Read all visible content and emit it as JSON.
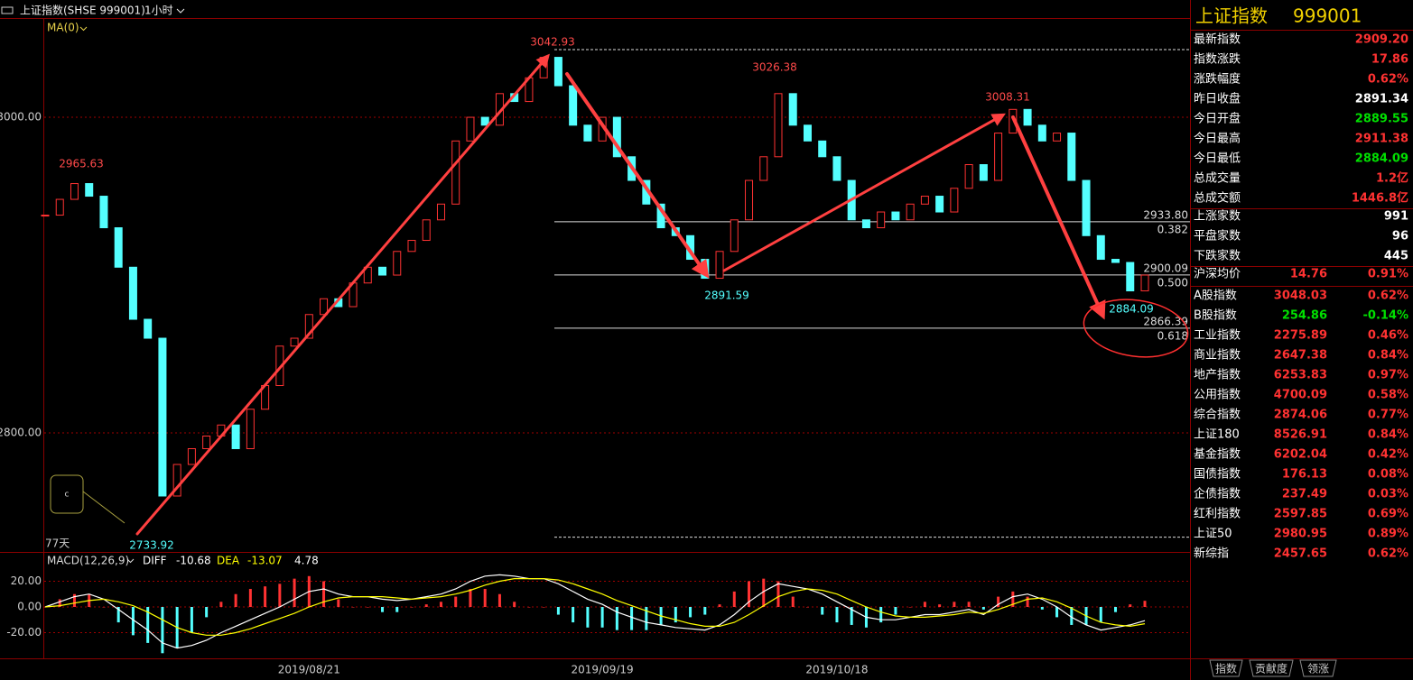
{
  "header": {
    "symbol": "上证指数(SHSE 999001)",
    "period": "1小时",
    "indicator": "MA(0)",
    "span": "77天",
    "note": "c"
  },
  "chart_data": {
    "type": "candlestick",
    "categories": [
      null,
      null,
      null,
      null,
      null,
      null,
      null,
      null,
      null,
      null,
      null,
      null,
      null,
      null,
      null,
      null,
      null,
      null,
      "2019/08/21",
      null,
      null,
      null,
      null,
      null,
      null,
      null,
      null,
      null,
      null,
      null,
      null,
      null,
      null,
      null,
      null,
      null,
      null,
      null,
      "2019/09/19",
      null,
      null,
      null,
      null,
      null,
      null,
      null,
      null,
      null,
      null,
      null,
      null,
      null,
      null,
      null,
      "2019/10/18",
      null,
      null,
      null,
      null,
      null,
      null,
      null,
      null,
      null,
      null,
      null,
      null,
      null,
      null,
      null,
      null,
      null,
      null,
      null,
      null,
      null
    ],
    "values": [
      2938,
      2948,
      2958,
      2950,
      2930,
      2905,
      2872,
      2860,
      2760,
      2780,
      2790,
      2798,
      2805,
      2790,
      2815,
      2830,
      2855,
      2860,
      2875,
      2885,
      2880,
      2895,
      2905,
      2900,
      2915,
      2922,
      2935,
      2945,
      2985,
      3000,
      2995,
      3015,
      3010,
      3025,
      3038,
      3020,
      2995,
      2985,
      3000,
      2975,
      2960,
      2945,
      2930,
      2925,
      2910,
      2898,
      2915,
      2935,
      2960,
      2975,
      3015,
      2995,
      2985,
      2975,
      2960,
      2935,
      2930,
      2940,
      2935,
      2945,
      2950,
      2940,
      2955,
      2970,
      2960,
      2990,
      3005,
      2995,
      2985,
      2990,
      2960,
      2925,
      2910,
      2908,
      2890,
      2900
    ],
    "up_color": "#ff3232",
    "down_color": "#54ffff",
    "ylim": [
      2725.7,
      3062.9
    ],
    "yticks": [
      {
        "value": 2800,
        "label": "2800.00"
      },
      {
        "value": 3000,
        "label": "3000.00"
      }
    ],
    "grid": true,
    "price_labels": [
      3042.93,
      2965.63,
      3026.38,
      3008.31,
      2891.59,
      2884.09,
      2733.92
    ],
    "fib": [
      {
        "price": {
          "value": 2933.8,
          "label": "2933.80"
        },
        "ratio": 0.382
      },
      {
        "price": 2900.09,
        "ratio": {
          "value": 0.5,
          "label": "0.500"
        }
      },
      {
        "price": 2866.39,
        "ratio": 0.618
      }
    ],
    "macd": {
      "title": "MACD(12,26,9)",
      "ylim": [
        -40,
        42.8
      ],
      "yticks": [
        {
          "value": -20,
          "label": "-20.00"
        },
        {
          "value": 0,
          "label": "0.00"
        },
        {
          "value": 20,
          "label": "20.00"
        }
      ],
      "hist": [
        0,
        6,
        10,
        10,
        0,
        -12,
        -22,
        -28,
        -36,
        -32,
        -20,
        -8,
        4,
        10,
        14,
        16,
        18,
        22,
        24,
        20,
        6,
        0,
        0,
        -4,
        -4,
        0,
        2,
        4,
        8,
        14,
        14,
        10,
        4,
        0,
        0,
        -6,
        -12,
        -16,
        -16,
        -18,
        -18,
        -18,
        -14,
        -12,
        -8,
        -6,
        2,
        12,
        20,
        22,
        20,
        8,
        0,
        -6,
        -12,
        -14,
        -16,
        -12,
        -6,
        0,
        4,
        2,
        4,
        4,
        -2,
        8,
        12,
        8,
        -2,
        -8,
        -14,
        -14,
        -12,
        -4,
        2,
        4.78
      ],
      "series": [
        {
          "name": "DIFF",
          "color": "#ffffff",
          "values": [
            0,
            4,
            8,
            10,
            6,
            -2,
            -10,
            -18,
            -28,
            -32,
            -30,
            -26,
            -20,
            -15,
            -10,
            -5,
            0,
            6,
            12,
            14,
            10,
            8,
            8,
            6,
            5,
            6,
            8,
            10,
            14,
            20,
            24,
            25,
            24,
            22,
            22,
            18,
            12,
            6,
            2,
            -4,
            -8,
            -12,
            -14,
            -16,
            -17,
            -18,
            -14,
            -6,
            4,
            12,
            18,
            16,
            14,
            10,
            4,
            -2,
            -8,
            -10,
            -10,
            -8,
            -6,
            -6,
            -4,
            -2,
            -6,
            2,
            8,
            10,
            6,
            0,
            -8,
            -14,
            -18,
            -16,
            -14,
            -10.68
          ]
        },
        {
          "name": "DEA",
          "color": "#ffff00",
          "values": [
            0,
            1,
            3,
            5,
            6,
            4,
            1,
            -4,
            -10,
            -16,
            -20,
            -22,
            -22,
            -20,
            -17,
            -13,
            -9,
            -5,
            0,
            4,
            7,
            8,
            8,
            8,
            7,
            6,
            7,
            8,
            10,
            13,
            17,
            20,
            22,
            22,
            22,
            21,
            18,
            14,
            10,
            5,
            1,
            -3,
            -7,
            -10,
            -13,
            -15,
            -15,
            -12,
            -6,
            1,
            8,
            12,
            14,
            13,
            10,
            5,
            0,
            -4,
            -7,
            -8,
            -8,
            -7,
            -6,
            -4,
            -5,
            -2,
            2,
            6,
            7,
            4,
            -1,
            -7,
            -12,
            -14,
            -15,
            -13.07
          ]
        }
      ]
    }
  },
  "panel": {
    "title": "上证指数",
    "code": "999001",
    "groups": [
      [
        {
          "label": "最新指数",
          "value": "2909.20",
          "color": "#ff3232"
        },
        {
          "label": "指数涨跌",
          "value": "17.86",
          "color": "#ff3232"
        },
        {
          "label": "涨跌幅度",
          "value": "0.62%",
          "color": "#ff3232"
        },
        {
          "label": "昨日收盘",
          "value": "2891.34",
          "color": "#ffffff"
        },
        {
          "label": "今日开盘",
          "value": "2889.55",
          "color": "#00e000"
        },
        {
          "label": "今日最高",
          "value": "2911.38",
          "color": "#ff3232"
        },
        {
          "label": "今日最低",
          "value": "2884.09",
          "color": "#00e000"
        },
        {
          "label": "总成交量",
          "value": "1.2亿",
          "color": "#ff3232"
        },
        {
          "label": "总成交额",
          "value": "1446.8亿",
          "color": "#ff3232"
        }
      ],
      [
        {
          "label": "上涨家数",
          "value": "991",
          "color": "#ffffff"
        },
        {
          "label": "平盘家数",
          "value": "96",
          "color": "#ffffff"
        },
        {
          "label": "下跌家数",
          "value": "445",
          "color": "#ffffff"
        }
      ],
      [
        {
          "label": "沪深均价",
          "value": "14.76",
          "change": "0.91%",
          "color": "#ff3232"
        }
      ],
      [
        {
          "label": "A股指数",
          "value": "3048.03",
          "change": "0.62%",
          "color": "#ff3232"
        },
        {
          "label": "B股指数",
          "value": "254.86",
          "change": "-0.14%",
          "color": "#00e000"
        },
        {
          "label": "工业指数",
          "value": "2275.89",
          "change": "0.46%",
          "color": "#ff3232"
        },
        {
          "label": "商业指数",
          "value": "2647.38",
          "change": "0.84%",
          "color": "#ff3232"
        },
        {
          "label": "地产指数",
          "value": "6253.83",
          "change": "0.97%",
          "color": "#ff3232"
        },
        {
          "label": "公用指数",
          "value": "4700.09",
          "change": "0.58%",
          "color": "#ff3232"
        },
        {
          "label": "综合指数",
          "value": "2874.06",
          "change": "0.77%",
          "color": "#ff3232"
        },
        {
          "label": "上证180",
          "value": "8526.91",
          "change": "0.84%",
          "color": "#ff3232"
        },
        {
          "label": "基金指数",
          "value": "6202.04",
          "change": "0.42%",
          "color": "#ff3232"
        },
        {
          "label": "国债指数",
          "value": "176.13",
          "change": "0.08%",
          "color": "#ff3232"
        },
        {
          "label": "企债指数",
          "value": "237.49",
          "change": "0.03%",
          "color": "#ff3232"
        },
        {
          "label": "红利指数",
          "value": "2597.85",
          "change": "0.69%",
          "color": "#ff3232"
        },
        {
          "label": "上证50",
          "value": "2980.95",
          "change": "0.89%",
          "color": "#ff3232"
        },
        {
          "label": "新综指",
          "value": "2457.65",
          "change": "0.62%",
          "color": "#ff3232"
        }
      ]
    ],
    "tabs": [
      "指数",
      "贡献度",
      "领涨"
    ]
  }
}
